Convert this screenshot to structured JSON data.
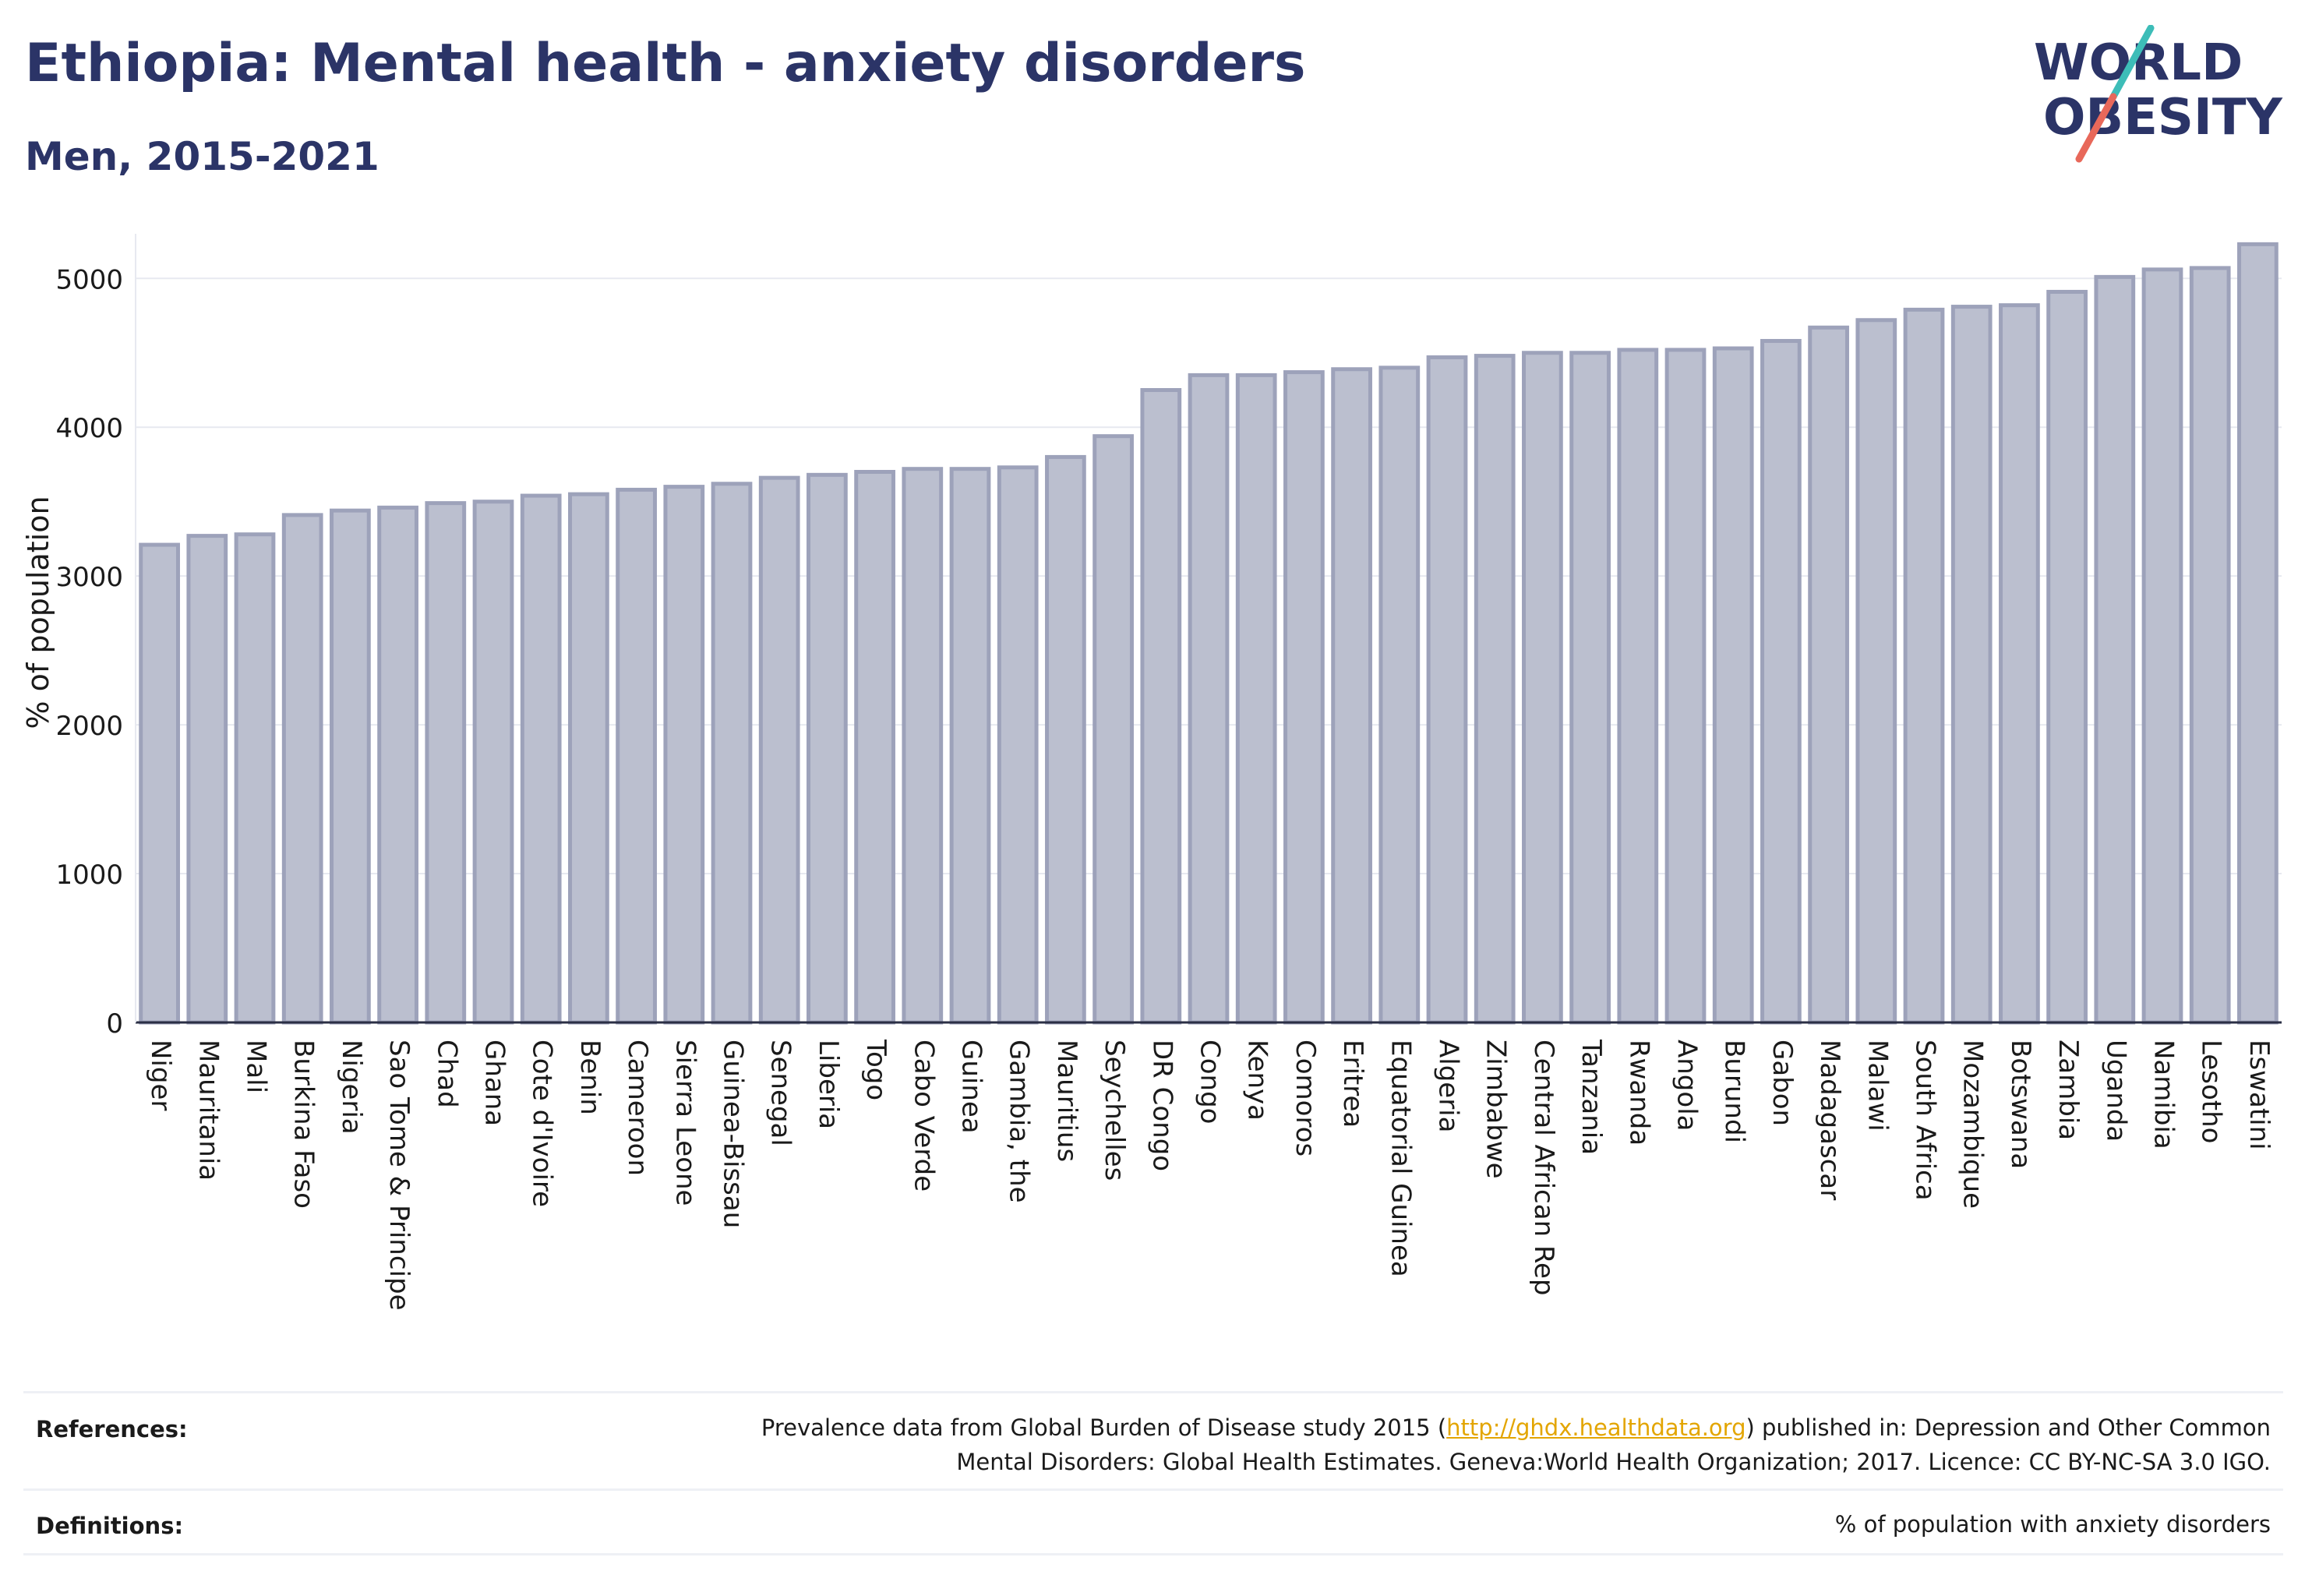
{
  "header": {
    "title": "Ethiopia: Mental health - anxiety disorders",
    "subtitle": "Men, 2015-2021"
  },
  "logo": {
    "line1": "WORLD",
    "line2": "OBESITY",
    "colors": {
      "text": "#2b3467",
      "slash_top": "#3dbdb8",
      "slash_bottom": "#e8685a"
    }
  },
  "chart_data": {
    "type": "bar",
    "ylabel": "% of population",
    "ylim": [
      0,
      5300
    ],
    "yticks": [
      0,
      1000,
      2000,
      3000,
      4000,
      5000
    ],
    "grid": true,
    "bar_color": "#bbbfcf",
    "bar_edge_color": "#9da2ba",
    "categories": [
      "Niger",
      "Mauritania",
      "Mali",
      "Burkina Faso",
      "Nigeria",
      "Sao Tome & Principe",
      "Chad",
      "Ghana",
      "Cote d'Ivoire",
      "Benin",
      "Cameroon",
      "Sierra Leone",
      "Guinea-Bissau",
      "Senegal",
      "Liberia",
      "Togo",
      "Cabo Verde",
      "Guinea",
      "Gambia, the",
      "Mauritius",
      "Seychelles",
      "DR Congo",
      "Congo",
      "Kenya",
      "Comoros",
      "Eritrea",
      "Equatorial Guinea",
      "Algeria",
      "Zimbabwe",
      "Central African Rep",
      "Tanzania",
      "Rwanda",
      "Angola",
      "Burundi",
      "Gabon",
      "Madagascar",
      "Malawi",
      "South Africa",
      "Mozambique",
      "Botswana",
      "Zambia",
      "Uganda",
      "Namibia",
      "Lesotho",
      "Eswatini"
    ],
    "values": [
      3210,
      3270,
      3280,
      3410,
      3440,
      3460,
      3490,
      3500,
      3540,
      3550,
      3580,
      3600,
      3620,
      3660,
      3680,
      3700,
      3720,
      3720,
      3730,
      3800,
      3940,
      4250,
      4350,
      4350,
      4370,
      4390,
      4400,
      4470,
      4480,
      4500,
      4500,
      4520,
      4520,
      4530,
      4580,
      4670,
      4720,
      4790,
      4810,
      4820,
      4910,
      5010,
      5060,
      5070,
      5230
    ]
  },
  "footer": {
    "references_label": "References:",
    "references_text_before": "Prevalence data from Global Burden of Disease study 2015 (",
    "references_link": "http://ghdx.healthdata.org",
    "references_text_after": ") published in: Depression and Other Common",
    "references_line2": "Mental Disorders: Global Health Estimates. Geneva:World Health Organization; 2017. Licence: CC BY-NC-SA 3.0 IGO.",
    "definitions_label": "Definitions:",
    "definitions_text": "% of population with anxiety disorders"
  }
}
